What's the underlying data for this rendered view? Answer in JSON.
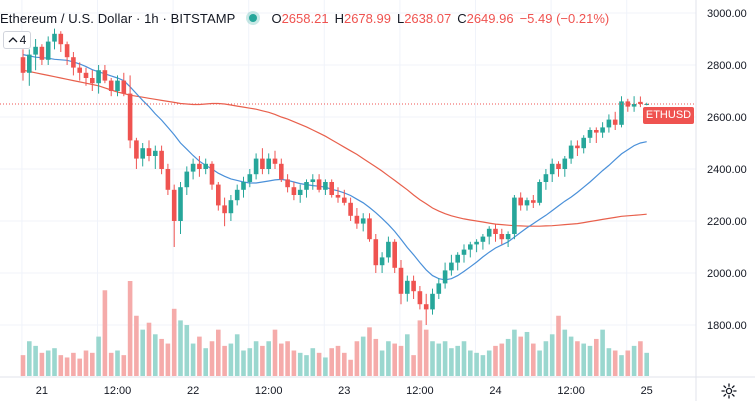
{
  "header": {
    "title": "Ethereum / U.S. Dollar · 1h · BITSTAMP",
    "ohlc": [
      {
        "key": "O",
        "value": "2658.21"
      },
      {
        "key": "H",
        "value": "2678.99"
      },
      {
        "key": "L",
        "value": "2638.07"
      },
      {
        "key": "C",
        "value": "2649.96"
      }
    ],
    "change": "−5.49 (−0.21%)"
  },
  "indicators_toggle": {
    "label": "4",
    "icon": "chevron-up-icon"
  },
  "price_tag": {
    "label": "ETHUSD",
    "value": 2650
  },
  "settings": {
    "icon": "gear-icon"
  },
  "colors": {
    "up": "#26a69a",
    "down": "#ef5350",
    "vol_up": "#9ad7cf",
    "vol_down": "#f5abaa",
    "ma_fast": "#4a90d9",
    "ma_slow": "#e8604c",
    "grid": "#f0f3fa",
    "axis_text": "#131722"
  },
  "chart_data": {
    "type": "candlestick",
    "ylim": [
      1600,
      3050
    ],
    "y_ticks": [
      "3000.00",
      "2800.00",
      "2600.00",
      "2400.00",
      "2200.00",
      "2000.00",
      "1800.00"
    ],
    "y_tick_values": [
      3000,
      2800,
      2600,
      2400,
      2200,
      2000,
      1800
    ],
    "x_ticks": [
      "21",
      "12:00",
      "22",
      "12:00",
      "23",
      "12:00",
      "24",
      "12:00",
      "25"
    ],
    "x_tick_bars": [
      3,
      15,
      27,
      39,
      51,
      63,
      75,
      87,
      99
    ],
    "bar_count": 100,
    "grid": true,
    "candles": [
      [
        2830,
        2860,
        2740,
        2770
      ],
      [
        2770,
        2860,
        2720,
        2840
      ],
      [
        2840,
        2900,
        2780,
        2870
      ],
      [
        2870,
        2880,
        2800,
        2820
      ],
      [
        2820,
        2910,
        2800,
        2890
      ],
      [
        2890,
        2940,
        2860,
        2920
      ],
      [
        2920,
        2930,
        2850,
        2880
      ],
      [
        2880,
        2890,
        2800,
        2830
      ],
      [
        2830,
        2850,
        2760,
        2790
      ],
      [
        2790,
        2810,
        2740,
        2770
      ],
      [
        2770,
        2790,
        2720,
        2750
      ],
      [
        2750,
        2780,
        2700,
        2730
      ],
      [
        2730,
        2800,
        2690,
        2780
      ],
      [
        2780,
        2800,
        2730,
        2740
      ],
      [
        2740,
        2750,
        2680,
        2700
      ],
      [
        2700,
        2760,
        2680,
        2740
      ],
      [
        2740,
        2770,
        2680,
        2690
      ],
      [
        2690,
        2760,
        2480,
        2510
      ],
      [
        2510,
        2520,
        2400,
        2440
      ],
      [
        2440,
        2500,
        2410,
        2480
      ],
      [
        2480,
        2510,
        2430,
        2450
      ],
      [
        2450,
        2490,
        2400,
        2470
      ],
      [
        2470,
        2490,
        2380,
        2400
      ],
      [
        2400,
        2420,
        2300,
        2320
      ],
      [
        2320,
        2340,
        2100,
        2200
      ],
      [
        2200,
        2350,
        2150,
        2330
      ],
      [
        2330,
        2410,
        2300,
        2390
      ],
      [
        2390,
        2440,
        2360,
        2420
      ],
      [
        2420,
        2450,
        2370,
        2400
      ],
      [
        2400,
        2440,
        2380,
        2420
      ],
      [
        2420,
        2430,
        2320,
        2340
      ],
      [
        2340,
        2350,
        2240,
        2260
      ],
      [
        2260,
        2290,
        2180,
        2230
      ],
      [
        2230,
        2300,
        2200,
        2280
      ],
      [
        2280,
        2340,
        2260,
        2320
      ],
      [
        2320,
        2370,
        2290,
        2350
      ],
      [
        2350,
        2400,
        2330,
        2380
      ],
      [
        2380,
        2460,
        2360,
        2440
      ],
      [
        2440,
        2480,
        2380,
        2400
      ],
      [
        2400,
        2460,
        2380,
        2440
      ],
      [
        2440,
        2470,
        2400,
        2420
      ],
      [
        2420,
        2440,
        2350,
        2360
      ],
      [
        2360,
        2380,
        2310,
        2330
      ],
      [
        2330,
        2350,
        2280,
        2300
      ],
      [
        2300,
        2340,
        2270,
        2320
      ],
      [
        2320,
        2360,
        2290,
        2350
      ],
      [
        2350,
        2380,
        2320,
        2360
      ],
      [
        2360,
        2380,
        2310,
        2320
      ],
      [
        2320,
        2360,
        2300,
        2350
      ],
      [
        2350,
        2360,
        2290,
        2300
      ],
      [
        2300,
        2330,
        2270,
        2290
      ],
      [
        2290,
        2320,
        2260,
        2270
      ],
      [
        2270,
        2290,
        2200,
        2220
      ],
      [
        2220,
        2250,
        2170,
        2190
      ],
      [
        2190,
        2230,
        2160,
        2210
      ],
      [
        2210,
        2230,
        2120,
        2130
      ],
      [
        2130,
        2150,
        2000,
        2030
      ],
      [
        2030,
        2080,
        2000,
        2060
      ],
      [
        2060,
        2140,
        2040,
        2120
      ],
      [
        2120,
        2130,
        2000,
        2020
      ],
      [
        2020,
        2050,
        1880,
        1920
      ],
      [
        1920,
        1990,
        1890,
        1970
      ],
      [
        1970,
        1990,
        1900,
        1930
      ],
      [
        1930,
        1950,
        1860,
        1880
      ],
      [
        1880,
        1920,
        1800,
        1860
      ],
      [
        1860,
        1940,
        1840,
        1920
      ],
      [
        1920,
        1980,
        1900,
        1960
      ],
      [
        1960,
        2040,
        1940,
        2010
      ],
      [
        2010,
        2070,
        1990,
        2040
      ],
      [
        2040,
        2080,
        2010,
        2070
      ],
      [
        2070,
        2110,
        2040,
        2090
      ],
      [
        2090,
        2120,
        2060,
        2110
      ],
      [
        2110,
        2130,
        2080,
        2120
      ],
      [
        2120,
        2150,
        2090,
        2140
      ],
      [
        2140,
        2180,
        2110,
        2170
      ],
      [
        2170,
        2190,
        2120,
        2150
      ],
      [
        2150,
        2170,
        2110,
        2130
      ],
      [
        2130,
        2160,
        2100,
        2150
      ],
      [
        2150,
        2300,
        2130,
        2290
      ],
      [
        2290,
        2310,
        2240,
        2260
      ],
      [
        2260,
        2290,
        2240,
        2280
      ],
      [
        2280,
        2300,
        2250,
        2270
      ],
      [
        2270,
        2360,
        2260,
        2350
      ],
      [
        2350,
        2400,
        2320,
        2380
      ],
      [
        2380,
        2440,
        2350,
        2420
      ],
      [
        2420,
        2430,
        2370,
        2400
      ],
      [
        2400,
        2450,
        2370,
        2440
      ],
      [
        2440,
        2510,
        2420,
        2490
      ],
      [
        2490,
        2510,
        2450,
        2480
      ],
      [
        2480,
        2530,
        2460,
        2520
      ],
      [
        2520,
        2560,
        2500,
        2550
      ],
      [
        2550,
        2560,
        2500,
        2540
      ],
      [
        2540,
        2580,
        2520,
        2560
      ],
      [
        2560,
        2610,
        2540,
        2590
      ],
      [
        2590,
        2620,
        2550,
        2570
      ],
      [
        2570,
        2680,
        2560,
        2660
      ],
      [
        2660,
        2670,
        2620,
        2640
      ],
      [
        2640,
        2680,
        2620,
        2650
      ],
      [
        2658.21,
        2678.99,
        2638.07,
        2649.96
      ],
      [
        2650,
        2655,
        2645,
        2650
      ]
    ],
    "volumes": [
      18,
      30,
      26,
      20,
      22,
      24,
      18,
      16,
      20,
      15,
      22,
      20,
      34,
      74,
      20,
      22,
      18,
      82,
      52,
      40,
      46,
      36,
      32,
      28,
      58,
      48,
      44,
      28,
      34,
      24,
      30,
      40,
      26,
      28,
      36,
      22,
      24,
      30,
      26,
      30,
      40,
      28,
      30,
      22,
      20,
      18,
      24,
      20,
      16,
      24,
      26,
      20,
      14,
      30,
      34,
      42,
      32,
      22,
      30,
      28,
      26,
      36,
      18,
      48,
      40,
      30,
      28,
      30,
      24,
      26,
      30,
      22,
      20,
      18,
      22,
      26,
      28,
      32,
      40,
      34,
      38,
      28,
      22,
      30,
      36,
      52,
      40,
      34,
      30,
      28,
      26,
      32,
      40,
      24,
      22,
      18,
      22,
      26,
      30,
      20
    ],
    "ma_fast": [
      2840,
      2835,
      2830,
      2828,
      2826,
      2822,
      2820,
      2818,
      2812,
      2804,
      2794,
      2782,
      2774,
      2766,
      2758,
      2750,
      2740,
      2716,
      2690,
      2664,
      2640,
      2612,
      2588,
      2560,
      2532,
      2500,
      2476,
      2452,
      2430,
      2414,
      2400,
      2384,
      2372,
      2362,
      2356,
      2350,
      2346,
      2346,
      2350,
      2354,
      2358,
      2360,
      2356,
      2350,
      2344,
      2340,
      2336,
      2334,
      2330,
      2322,
      2316,
      2308,
      2298,
      2284,
      2270,
      2252,
      2232,
      2210,
      2186,
      2160,
      2130,
      2098,
      2070,
      2040,
      2012,
      1990,
      1978,
      1974,
      1978,
      1990,
      2006,
      2024,
      2042,
      2062,
      2080,
      2096,
      2108,
      2120,
      2138,
      2156,
      2174,
      2190,
      2206,
      2222,
      2240,
      2258,
      2276,
      2292,
      2310,
      2330,
      2350,
      2372,
      2394,
      2414,
      2436,
      2458,
      2474,
      2490,
      2500,
      2505
    ],
    "ma_slow": [
      2780,
      2775,
      2770,
      2765,
      2760,
      2755,
      2750,
      2745,
      2740,
      2735,
      2730,
      2725,
      2720,
      2712,
      2704,
      2696,
      2690,
      2684,
      2680,
      2676,
      2672,
      2668,
      2664,
      2660,
      2656,
      2652,
      2650,
      2648,
      2648,
      2650,
      2652,
      2652,
      2650,
      2646,
      2642,
      2638,
      2634,
      2630,
      2624,
      2618,
      2610,
      2600,
      2592,
      2582,
      2572,
      2562,
      2550,
      2538,
      2526,
      2512,
      2498,
      2484,
      2470,
      2456,
      2440,
      2424,
      2408,
      2392,
      2374,
      2356,
      2338,
      2320,
      2300,
      2282,
      2266,
      2250,
      2238,
      2228,
      2220,
      2214,
      2208,
      2204,
      2200,
      2196,
      2192,
      2188,
      2186,
      2184,
      2182,
      2181,
      2180,
      2180,
      2180,
      2181,
      2182,
      2184,
      2186,
      2188,
      2190,
      2194,
      2198,
      2202,
      2206,
      2210,
      2214,
      2218,
      2220,
      2222,
      2224,
      2226
    ]
  }
}
